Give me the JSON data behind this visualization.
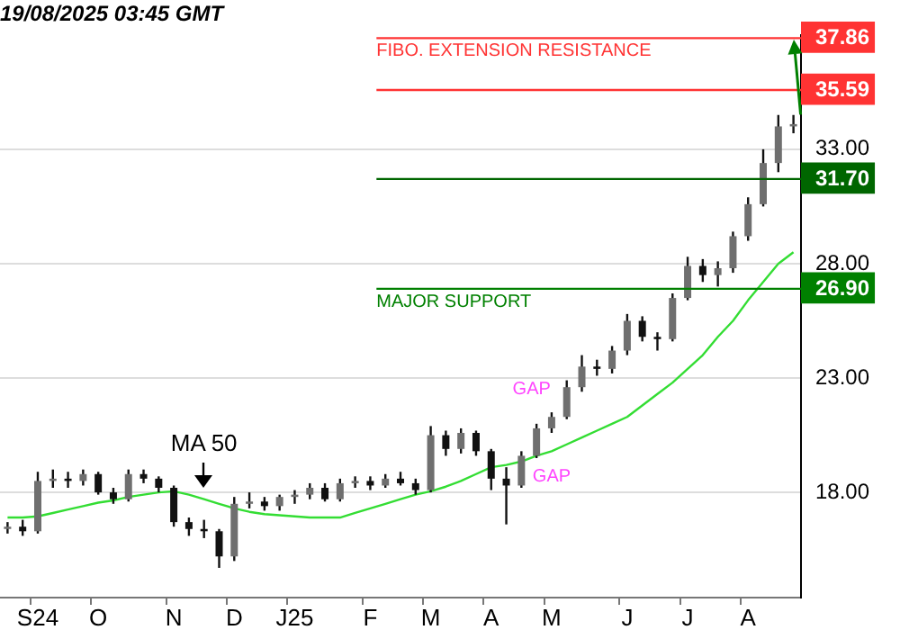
{
  "chart_data": {
    "type": "candlestick",
    "title": "19/08/2025 03:45 GMT",
    "categories": [
      null,
      null,
      "S24",
      null,
      null,
      null,
      "O",
      null,
      null,
      null,
      null,
      "N",
      null,
      null,
      null,
      "D",
      null,
      null,
      null,
      "J25",
      null,
      null,
      null,
      null,
      "F",
      null,
      null,
      null,
      "M",
      null,
      null,
      null,
      "A",
      null,
      null,
      null,
      "M",
      null,
      null,
      null,
      null,
      "J",
      null,
      null,
      null,
      "J",
      null,
      null,
      null,
      "A",
      null,
      null,
      null
    ],
    "ohlc": [
      [
        16.4,
        16.7,
        16.2,
        16.5
      ],
      [
        16.5,
        16.8,
        16.1,
        16.3
      ],
      [
        16.3,
        18.9,
        16.2,
        18.5
      ],
      [
        18.5,
        19.0,
        18.2,
        18.6
      ],
      [
        18.6,
        18.9,
        18.2,
        18.5
      ],
      [
        18.5,
        19.0,
        18.3,
        18.8
      ],
      [
        18.8,
        18.9,
        17.9,
        18.0
      ],
      [
        18.0,
        18.2,
        17.5,
        17.7
      ],
      [
        17.7,
        19.0,
        17.6,
        18.8
      ],
      [
        18.8,
        19.0,
        18.4,
        18.6
      ],
      [
        18.6,
        18.7,
        18.0,
        18.2
      ],
      [
        18.2,
        18.3,
        16.5,
        16.7
      ],
      [
        16.7,
        16.9,
        16.1,
        16.4
      ],
      [
        16.4,
        16.8,
        16.0,
        16.3
      ],
      [
        16.3,
        16.4,
        14.7,
        15.2
      ],
      [
        15.2,
        17.8,
        15.0,
        17.5
      ],
      [
        17.5,
        18.0,
        17.3,
        17.6
      ],
      [
        17.6,
        17.8,
        17.2,
        17.4
      ],
      [
        17.4,
        17.9,
        17.2,
        17.8
      ],
      [
        17.8,
        18.1,
        17.5,
        17.9
      ],
      [
        17.9,
        18.4,
        17.7,
        18.2
      ],
      [
        18.2,
        18.4,
        17.6,
        17.7
      ],
      [
        17.7,
        18.6,
        17.6,
        18.4
      ],
      [
        18.4,
        18.7,
        18.2,
        18.5
      ],
      [
        18.5,
        18.7,
        18.1,
        18.3
      ],
      [
        18.3,
        18.8,
        18.2,
        18.6
      ],
      [
        18.6,
        18.9,
        18.3,
        18.4
      ],
      [
        18.4,
        18.6,
        17.9,
        18.1
      ],
      [
        18.1,
        20.9,
        18.0,
        20.5
      ],
      [
        20.5,
        20.7,
        19.6,
        19.9
      ],
      [
        19.9,
        20.8,
        19.7,
        20.6
      ],
      [
        20.6,
        20.7,
        19.6,
        19.8
      ],
      [
        19.8,
        19.9,
        18.1,
        18.6
      ],
      [
        18.6,
        19.1,
        16.6,
        18.3
      ],
      [
        18.3,
        19.8,
        18.2,
        19.6
      ],
      [
        19.6,
        21.0,
        19.5,
        20.8
      ],
      [
        20.8,
        21.5,
        20.6,
        21.3
      ],
      [
        21.3,
        22.9,
        21.2,
        22.6
      ],
      [
        22.6,
        24.0,
        22.4,
        23.5
      ],
      [
        23.5,
        23.8,
        23.1,
        23.4
      ],
      [
        23.4,
        24.4,
        23.2,
        24.2
      ],
      [
        24.2,
        25.8,
        24.0,
        25.5
      ],
      [
        25.5,
        25.7,
        24.6,
        24.8
      ],
      [
        24.8,
        25.0,
        24.2,
        24.7
      ],
      [
        24.7,
        26.7,
        24.6,
        26.5
      ],
      [
        26.5,
        28.3,
        26.4,
        27.9
      ],
      [
        27.9,
        28.2,
        27.2,
        27.5
      ],
      [
        27.5,
        28.1,
        27.0,
        27.8
      ],
      [
        27.8,
        29.4,
        27.6,
        29.2
      ],
      [
        29.2,
        30.9,
        29.0,
        30.6
      ],
      [
        30.6,
        33.0,
        30.5,
        32.4
      ],
      [
        32.4,
        34.5,
        32.0,
        34.0
      ],
      [
        34.0,
        34.5,
        33.7,
        34.1
      ]
    ],
    "series": [
      {
        "name": "MA 50",
        "type": "line",
        "color": "#33dd33",
        "values": [
          16.9,
          16.9,
          16.95,
          17.1,
          17.25,
          17.4,
          17.55,
          17.65,
          17.8,
          17.9,
          18.0,
          18.05,
          17.9,
          17.7,
          17.5,
          17.3,
          17.15,
          17.05,
          17.0,
          16.95,
          16.9,
          16.9,
          16.9,
          17.1,
          17.3,
          17.5,
          17.7,
          17.9,
          18.05,
          18.25,
          18.5,
          18.8,
          19.1,
          19.2,
          19.35,
          19.6,
          19.8,
          20.1,
          20.4,
          20.7,
          21.0,
          21.3,
          21.8,
          22.3,
          22.8,
          23.4,
          24.0,
          24.8,
          25.5,
          26.4,
          27.2,
          28.0,
          28.5
        ]
      }
    ],
    "ylim": [
      13.4,
      38
    ],
    "yticks": [
      {
        "value": 18,
        "label": "18.00"
      },
      {
        "value": 23,
        "label": "23.00"
      },
      {
        "value": 26.9,
        "label": "26.90"
      },
      {
        "value": 28,
        "label": "28.00"
      },
      {
        "value": 31.7,
        "label": "31.70"
      },
      {
        "value": 33,
        "label": "33.00"
      },
      {
        "value": 35.59,
        "label": "35.59"
      },
      {
        "value": 37.86,
        "label": "37.86"
      }
    ],
    "ref_lines": [
      {
        "axis": "y",
        "value": 37.86,
        "label": "FIBO. EXTENSION RESISTANCE",
        "color": "#ff3333"
      },
      {
        "axis": "y",
        "value": 35.59,
        "label": null,
        "color": "#ff3333"
      },
      {
        "axis": "y",
        "value": 31.7,
        "label": null,
        "color": "#006600"
      },
      {
        "axis": "y",
        "value": 26.9,
        "label": "MAJOR SUPPORT",
        "color": "#008000"
      }
    ],
    "annotations": [
      "GAP",
      "GAP"
    ],
    "grid": "y",
    "legend": false
  }
}
